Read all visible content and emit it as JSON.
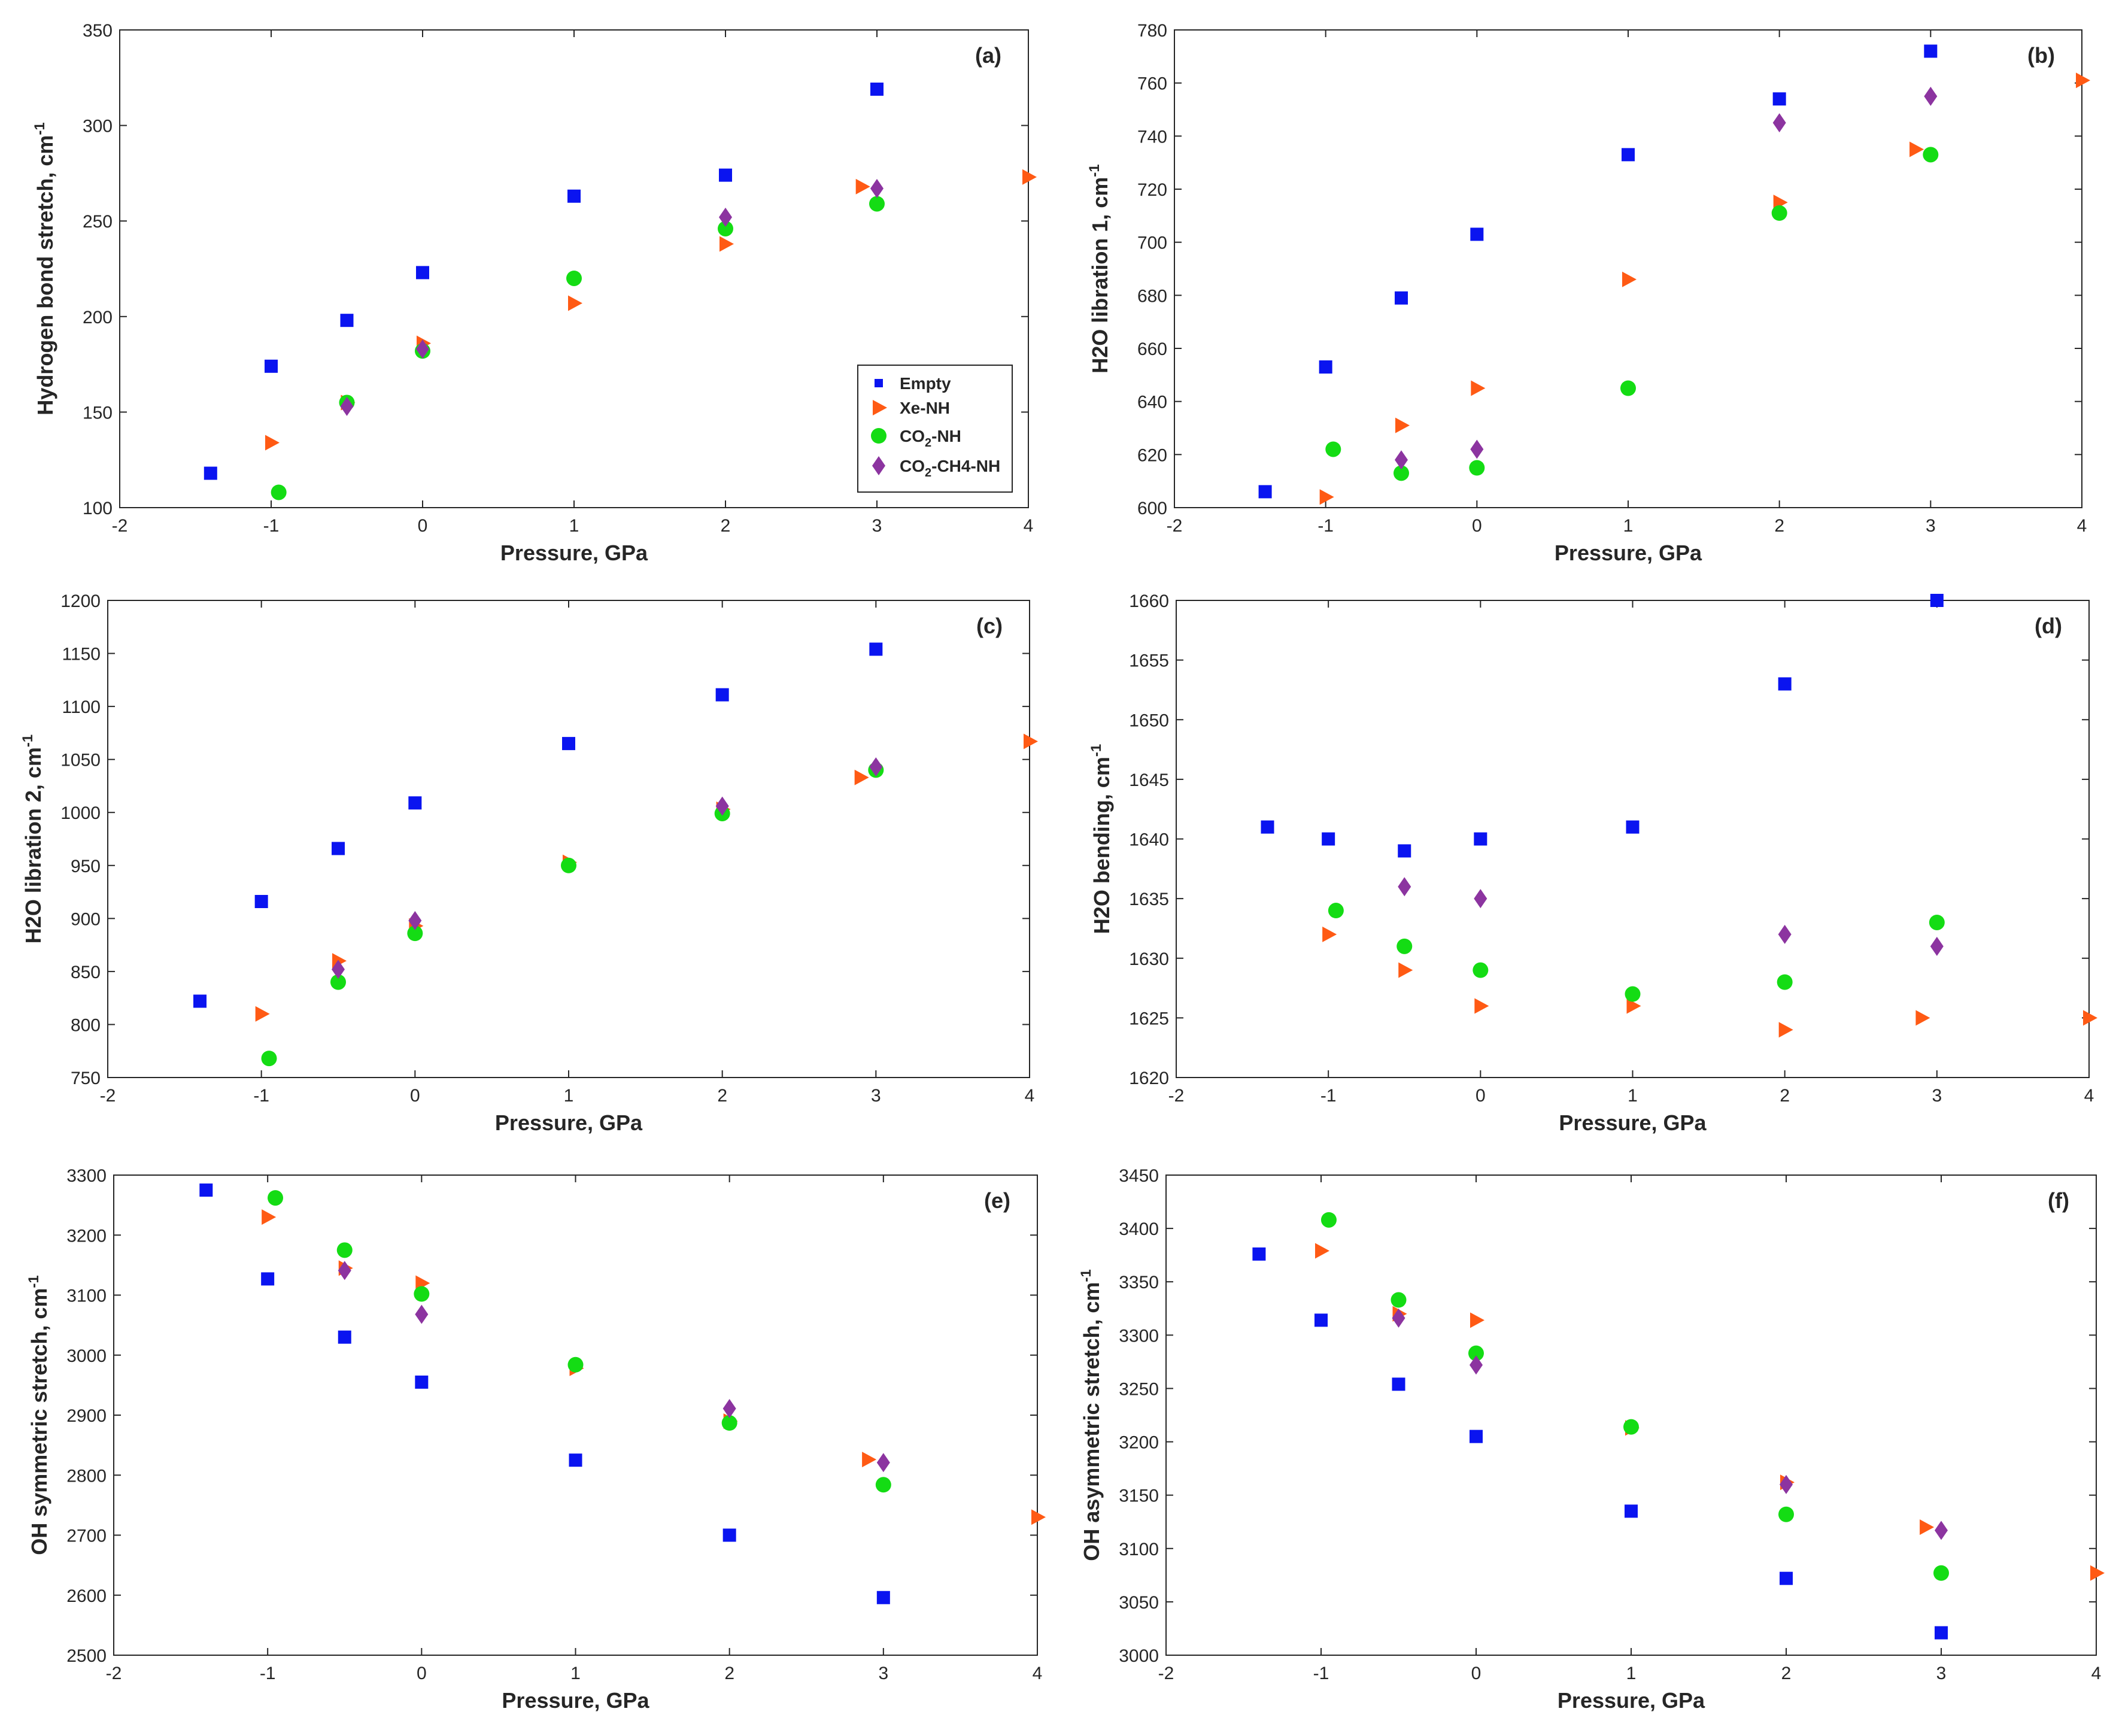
{
  "chart_data": [
    {
      "id": "a",
      "type": "scatter",
      "panel_label": "(a)",
      "xlabel": "Pressure, GPa",
      "ylabel": "Hydrogen bond stretch, cm",
      "ylabel_sup": "-1",
      "xlim": [
        -2,
        4
      ],
      "ylim": [
        100,
        350
      ],
      "xticks": [
        -2,
        -1,
        0,
        1,
        2,
        3,
        4
      ],
      "yticks": [
        100,
        150,
        200,
        250,
        300,
        350
      ],
      "legend": true,
      "series": [
        {
          "name": "Empty",
          "x": [
            -1.4,
            -1,
            -0.5,
            0,
            1,
            2,
            3
          ],
          "y": [
            118,
            174,
            198,
            223,
            263,
            274,
            319
          ]
        },
        {
          "name": "Xe-NH",
          "x": [
            -1,
            -0.5,
            0,
            1,
            2,
            2.9,
            4
          ],
          "y": [
            134,
            155,
            186,
            207,
            238,
            268,
            273
          ]
        },
        {
          "name": "CO2-NH",
          "x": [
            -0.95,
            -0.5,
            0,
            1,
            2,
            3
          ],
          "y": [
            108,
            155,
            182,
            220,
            246,
            259
          ]
        },
        {
          "name": "CO2-CH4-NH",
          "x": [
            -0.5,
            0,
            2,
            3
          ],
          "y": [
            153,
            183,
            252,
            267
          ]
        }
      ]
    },
    {
      "id": "b",
      "type": "scatter",
      "panel_label": "(b)",
      "xlabel": "Pressure, GPa",
      "ylabel": "H2O libration 1, cm",
      "ylabel_sup": "-1",
      "xlim": [
        -2,
        4
      ],
      "ylim": [
        600,
        780
      ],
      "xticks": [
        -2,
        -1,
        0,
        1,
        2,
        3,
        4
      ],
      "yticks": [
        600,
        620,
        640,
        660,
        680,
        700,
        720,
        740,
        760,
        780
      ],
      "legend": false,
      "series": [
        {
          "name": "Empty",
          "x": [
            -1.4,
            -1,
            -0.5,
            0,
            1,
            2,
            3
          ],
          "y": [
            606,
            653,
            679,
            703,
            733,
            754,
            772
          ]
        },
        {
          "name": "Xe-NH",
          "x": [
            -1,
            -0.5,
            0,
            1,
            2,
            2.9,
            4
          ],
          "y": [
            604,
            631,
            645,
            686,
            715,
            735,
            761
          ]
        },
        {
          "name": "CO2-NH",
          "x": [
            -0.95,
            -0.5,
            0,
            1,
            2,
            3
          ],
          "y": [
            622,
            613,
            615,
            645,
            711,
            733
          ]
        },
        {
          "name": "CO2-CH4-NH",
          "x": [
            -0.5,
            0,
            2,
            3
          ],
          "y": [
            618,
            622,
            745,
            755
          ]
        }
      ]
    },
    {
      "id": "c",
      "type": "scatter",
      "panel_label": "(c)",
      "xlabel": "Pressure, GPa",
      "ylabel": "H2O libration 2, cm",
      "ylabel_sup": "-1",
      "xlim": [
        -2,
        4
      ],
      "ylim": [
        750,
        1200
      ],
      "xticks": [
        -2,
        -1,
        0,
        1,
        2,
        3,
        4
      ],
      "yticks": [
        750,
        800,
        850,
        900,
        950,
        1000,
        1050,
        1100,
        1150,
        1200
      ],
      "legend": false,
      "series": [
        {
          "name": "Empty",
          "x": [
            -1.4,
            -1,
            -0.5,
            0,
            1,
            2,
            3
          ],
          "y": [
            822,
            916,
            966,
            1009,
            1065,
            1111,
            1154
          ]
        },
        {
          "name": "Xe-NH",
          "x": [
            -1,
            -0.5,
            0,
            1,
            2,
            2.9,
            4
          ],
          "y": [
            810,
            860,
            893,
            953,
            1003,
            1033,
            1067
          ]
        },
        {
          "name": "CO2-NH",
          "x": [
            -0.95,
            -0.5,
            0,
            1,
            2,
            3
          ],
          "y": [
            768,
            840,
            886,
            950,
            999,
            1040
          ]
        },
        {
          "name": "CO2-CH4-NH",
          "x": [
            -0.5,
            0,
            2,
            3
          ],
          "y": [
            852,
            898,
            1006,
            1043
          ]
        }
      ]
    },
    {
      "id": "d",
      "type": "scatter",
      "panel_label": "(d)",
      "xlabel": "Pressure, GPa",
      "ylabel": "H2O bending, cm",
      "ylabel_sup": "-1",
      "xlim": [
        -2,
        4
      ],
      "ylim": [
        1620,
        1660
      ],
      "xticks": [
        -2,
        -1,
        0,
        1,
        2,
        3,
        4
      ],
      "yticks": [
        1620,
        1625,
        1630,
        1635,
        1640,
        1645,
        1650,
        1655,
        1660
      ],
      "legend": false,
      "series": [
        {
          "name": "Empty",
          "x": [
            -1.4,
            -1,
            -0.5,
            0,
            1,
            2,
            3
          ],
          "y": [
            1641,
            1640,
            1639,
            1640,
            1641,
            1653,
            1660
          ]
        },
        {
          "name": "Xe-NH",
          "x": [
            -1,
            -0.5,
            0,
            1,
            2,
            2.9,
            4
          ],
          "y": [
            1632,
            1629,
            1626,
            1626,
            1624,
            1625,
            1625
          ]
        },
        {
          "name": "CO2-NH",
          "x": [
            -0.95,
            -0.5,
            0,
            1,
            2,
            3
          ],
          "y": [
            1634,
            1631,
            1629,
            1627,
            1628,
            1633
          ]
        },
        {
          "name": "CO2-CH4-NH",
          "x": [
            -0.5,
            0,
            2,
            3
          ],
          "y": [
            1636,
            1635,
            1632,
            1631
          ]
        }
      ]
    },
    {
      "id": "e",
      "type": "scatter",
      "panel_label": "(e)",
      "xlabel": "Pressure, GPa",
      "ylabel": "OH symmetric stretch, cm",
      "ylabel_sup": "-1",
      "xlim": [
        -2,
        4
      ],
      "ylim": [
        2500,
        3300
      ],
      "xticks": [
        -2,
        -1,
        0,
        1,
        2,
        3,
        4
      ],
      "yticks": [
        2500,
        2600,
        2700,
        2800,
        2900,
        3000,
        3100,
        3200,
        3300
      ],
      "legend": false,
      "series": [
        {
          "name": "Empty",
          "x": [
            -1.4,
            -1,
            -0.5,
            0,
            1,
            2,
            3
          ],
          "y": [
            3275,
            3127,
            3030,
            2955,
            2825,
            2700,
            2596
          ]
        },
        {
          "name": "Xe-NH",
          "x": [
            -1,
            -0.5,
            0,
            1,
            2,
            2.9,
            4
          ],
          "y": [
            3230,
            3145,
            3120,
            2978,
            2890,
            2826,
            2730
          ]
        },
        {
          "name": "CO2-NH",
          "x": [
            -0.95,
            -0.5,
            0,
            1,
            2,
            3
          ],
          "y": [
            3262,
            3175,
            3102,
            2984,
            2887,
            2784
          ]
        },
        {
          "name": "CO2-CH4-NH",
          "x": [
            -0.5,
            0,
            2,
            3
          ],
          "y": [
            3141,
            3068,
            2911,
            2821
          ]
        }
      ]
    },
    {
      "id": "f",
      "type": "scatter",
      "panel_label": "(f)",
      "xlabel": "Pressure, GPa",
      "ylabel": "OH asymmetric stretch, cm",
      "ylabel_sup": "-1",
      "xlim": [
        -2,
        4
      ],
      "ylim": [
        3000,
        3450
      ],
      "xticks": [
        -2,
        -1,
        0,
        1,
        2,
        3,
        4
      ],
      "yticks": [
        3000,
        3050,
        3100,
        3150,
        3200,
        3250,
        3300,
        3350,
        3400,
        3450
      ],
      "legend": false,
      "series": [
        {
          "name": "Empty",
          "x": [
            -1.4,
            -1,
            -0.5,
            0,
            1,
            2,
            3
          ],
          "y": [
            3376,
            3314,
            3254,
            3205,
            3135,
            3072,
            3021
          ]
        },
        {
          "name": "Xe-NH",
          "x": [
            -1,
            -0.5,
            0,
            1,
            2,
            2.9,
            4
          ],
          "y": [
            3379,
            3320,
            3314,
            3213,
            3162,
            3120,
            3077
          ]
        },
        {
          "name": "CO2-NH",
          "x": [
            -0.95,
            -0.5,
            0,
            1,
            2,
            3
          ],
          "y": [
            3408,
            3333,
            3283,
            3214,
            3132,
            3077
          ]
        },
        {
          "name": "CO2-CH4-NH",
          "x": [
            -0.5,
            0,
            2,
            3
          ],
          "y": [
            3316,
            3272,
            3160,
            3117
          ]
        }
      ]
    }
  ],
  "legend_entries": [
    {
      "name": "Empty",
      "label": "Empty",
      "label_base": "",
      "label_sub": "",
      "label_rest": ""
    },
    {
      "name": "Xe-NH",
      "label": "Xe-NH",
      "label_base": "",
      "label_sub": "",
      "label_rest": ""
    },
    {
      "name": "CO2-NH",
      "label": "",
      "label_base": "CO",
      "label_sub": "2",
      "label_rest": "-NH"
    },
    {
      "name": "CO2-CH4-NH",
      "label": "",
      "label_base": "CO",
      "label_sub": "2",
      "label_rest": "-CH4-NH"
    }
  ],
  "colors": {
    "Empty": "#0a14f0",
    "Xe-NH": "#ff5a14",
    "CO2-NH": "#14dc14",
    "CO2-CH4-NH": "#8c34a0",
    "axes": "#262626"
  },
  "markers": {
    "Empty": "square",
    "Xe-NH": "triangle-right",
    "CO2-NH": "circle",
    "CO2-CH4-NH": "diamond"
  }
}
